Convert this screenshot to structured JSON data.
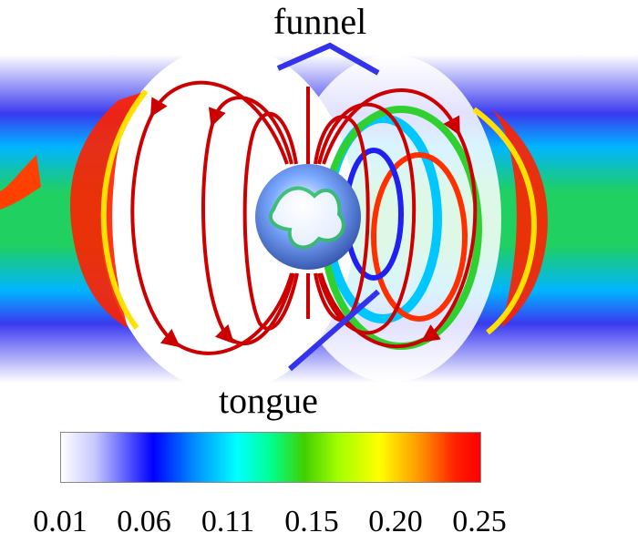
{
  "annotations": {
    "funnel_label": "funnel",
    "tongue_label": "tongue"
  },
  "colorbar": {
    "ticks": [
      "0.01",
      "0.06",
      "0.11",
      "0.15",
      "0.20",
      "0.25"
    ],
    "colors": [
      "#ffffff",
      "#0000ff",
      "#00ffff",
      "#40d000",
      "#ffff00",
      "#ff0000"
    ]
  },
  "colors": {
    "field_lines": "#cc0000",
    "pointer_lines": "#3333ee"
  }
}
